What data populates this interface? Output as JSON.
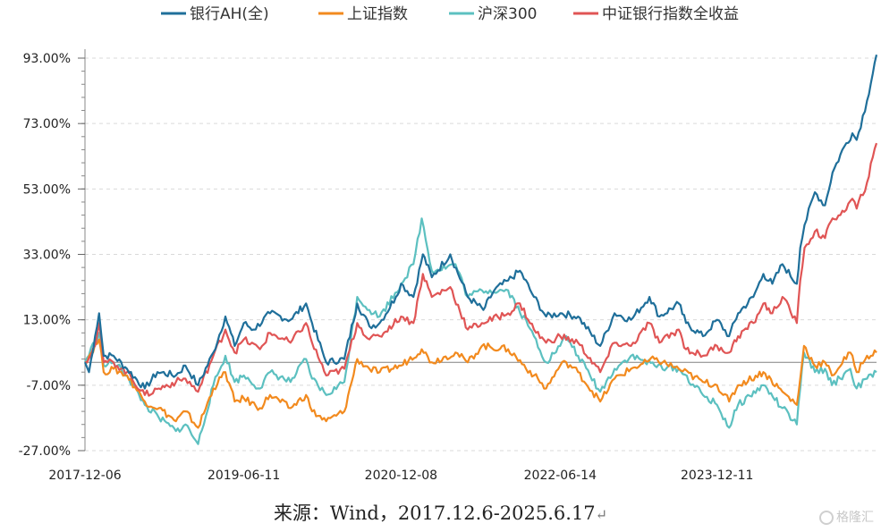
{
  "chart_data": {
    "type": "line",
    "legend": [
      "银行AH(全)",
      "上证指数",
      "沪深300",
      "中证银行指数全收益"
    ],
    "legend_position": "top",
    "y_ticks": [
      "93.00%",
      "73.00%",
      "53.00%",
      "33.00%",
      "13.00%",
      "-7.00%",
      "-27.00%"
    ],
    "ylim": [
      -27,
      93
    ],
    "x_ticks": [
      "2017-12-06",
      "2019-06-11",
      "2020-12-08",
      "2022-06-14",
      "2023-12-11"
    ],
    "x_range": [
      "2017-12-06",
      "2025-06-17"
    ],
    "grid": "horizontal dashed",
    "series": [
      {
        "name": "银行AH(全)",
        "color": "#1f6f9a",
        "points": [
          [
            "2017-12-06",
            0
          ],
          [
            "2017-12-20",
            -3
          ],
          [
            "2018-01-10",
            8
          ],
          [
            "2018-01-24",
            15
          ],
          [
            "2018-02-09",
            2
          ],
          [
            "2018-03-15",
            2
          ],
          [
            "2018-05-01",
            -2
          ],
          [
            "2018-07-02",
            -8
          ],
          [
            "2018-08-15",
            -3
          ],
          [
            "2018-10-18",
            -4
          ],
          [
            "2018-11-20",
            -1
          ],
          [
            "2019-01-03",
            -7
          ],
          [
            "2019-02-25",
            3
          ],
          [
            "2019-04-08",
            14
          ],
          [
            "2019-05-10",
            5
          ],
          [
            "2019-06-11",
            12
          ],
          [
            "2019-07-15",
            10
          ],
          [
            "2019-09-10",
            15
          ],
          [
            "2019-11-20",
            13
          ],
          [
            "2020-01-13",
            18
          ],
          [
            "2020-02-03",
            12
          ],
          [
            "2020-03-23",
            0
          ],
          [
            "2020-05-25",
            1
          ],
          [
            "2020-07-09",
            18
          ],
          [
            "2020-08-20",
            11
          ],
          [
            "2020-09-25",
            12
          ],
          [
            "2020-11-20",
            20
          ],
          [
            "2020-12-08",
            24
          ],
          [
            "2021-01-20",
            20
          ],
          [
            "2021-02-22",
            33
          ],
          [
            "2021-03-25",
            26
          ],
          [
            "2021-05-28",
            33
          ],
          [
            "2021-07-28",
            20
          ],
          [
            "2021-09-20",
            16
          ],
          [
            "2021-10-28",
            22
          ],
          [
            "2021-12-15",
            25
          ],
          [
            "2022-01-25",
            28
          ],
          [
            "2022-03-15",
            20
          ],
          [
            "2022-04-26",
            14
          ],
          [
            "2022-06-14",
            15
          ],
          [
            "2022-08-15",
            14
          ],
          [
            "2022-10-31",
            5
          ],
          [
            "2022-12-20",
            15
          ],
          [
            "2023-02-15",
            13
          ],
          [
            "2023-04-20",
            20
          ],
          [
            "2023-05-25",
            14
          ],
          [
            "2023-07-31",
            18
          ],
          [
            "2023-08-25",
            12
          ],
          [
            "2023-10-23",
            8
          ],
          [
            "2023-12-11",
            13
          ],
          [
            "2024-01-22",
            8
          ],
          [
            "2024-02-22",
            15
          ],
          [
            "2024-04-15",
            20
          ],
          [
            "2024-05-20",
            27
          ],
          [
            "2024-06-20",
            24
          ],
          [
            "2024-07-25",
            30
          ],
          [
            "2024-09-13",
            24
          ],
          [
            "2024-09-25",
            35
          ],
          [
            "2024-10-10",
            42
          ],
          [
            "2024-11-15",
            52
          ],
          [
            "2024-12-20",
            48
          ],
          [
            "2025-01-15",
            58
          ],
          [
            "2025-02-25",
            66
          ],
          [
            "2025-03-25",
            70
          ],
          [
            "2025-04-09",
            68
          ],
          [
            "2025-05-15",
            80
          ],
          [
            "2025-06-17",
            94
          ]
        ]
      },
      {
        "name": "上证指数",
        "color": "#f28a1e",
        "points": [
          [
            "2017-12-06",
            0
          ],
          [
            "2018-01-24",
            7
          ],
          [
            "2018-02-09",
            -3
          ],
          [
            "2018-03-15",
            -2
          ],
          [
            "2018-05-01",
            -4
          ],
          [
            "2018-07-02",
            -12
          ],
          [
            "2018-08-20",
            -14
          ],
          [
            "2018-10-18",
            -18
          ],
          [
            "2018-11-20",
            -15
          ],
          [
            "2019-01-03",
            -20
          ],
          [
            "2019-02-25",
            -8
          ],
          [
            "2019-04-08",
            -3
          ],
          [
            "2019-05-10",
            -12
          ],
          [
            "2019-06-11",
            -11
          ],
          [
            "2019-08-06",
            -14
          ],
          [
            "2019-09-10",
            -10
          ],
          [
            "2019-11-20",
            -14
          ],
          [
            "2020-01-13",
            -10
          ],
          [
            "2020-02-03",
            -15
          ],
          [
            "2020-03-23",
            -18
          ],
          [
            "2020-05-25",
            -15
          ],
          [
            "2020-07-09",
            1
          ],
          [
            "2020-08-20",
            -2
          ],
          [
            "2020-09-25",
            -3
          ],
          [
            "2020-12-08",
            -1
          ],
          [
            "2021-02-18",
            4
          ],
          [
            "2021-03-25",
            0
          ],
          [
            "2021-06-15",
            3
          ],
          [
            "2021-07-28",
            0
          ],
          [
            "2021-09-15",
            5
          ],
          [
            "2021-12-15",
            4
          ],
          [
            "2022-03-15",
            -4
          ],
          [
            "2022-04-26",
            -8
          ],
          [
            "2022-06-14",
            -1
          ],
          [
            "2022-07-05",
            0
          ],
          [
            "2022-08-15",
            -3
          ],
          [
            "2022-10-31",
            -12
          ],
          [
            "2022-12-20",
            -5
          ],
          [
            "2023-02-15",
            -2
          ],
          [
            "2023-05-08",
            1
          ],
          [
            "2023-07-31",
            -2
          ],
          [
            "2023-10-23",
            -6
          ],
          [
            "2023-12-11",
            -7
          ],
          [
            "2024-01-22",
            -12
          ],
          [
            "2024-02-22",
            -7
          ],
          [
            "2024-05-20",
            -3
          ],
          [
            "2024-07-25",
            -9
          ],
          [
            "2024-09-13",
            -13
          ],
          [
            "2024-09-25",
            -5
          ],
          [
            "2024-10-08",
            5
          ],
          [
            "2024-11-15",
            -1
          ],
          [
            "2024-12-20",
            0
          ],
          [
            "2025-01-13",
            -4
          ],
          [
            "2025-03-18",
            3
          ],
          [
            "2025-04-09",
            -3
          ],
          [
            "2025-05-15",
            2
          ],
          [
            "2025-06-17",
            3
          ]
        ]
      },
      {
        "name": "沪深300",
        "color": "#5cc0c0",
        "points": [
          [
            "2017-12-06",
            0
          ],
          [
            "2018-01-24",
            9
          ],
          [
            "2018-02-09",
            -1
          ],
          [
            "2018-03-15",
            0
          ],
          [
            "2018-05-01",
            -4
          ],
          [
            "2018-07-02",
            -13
          ],
          [
            "2018-08-20",
            -17
          ],
          [
            "2018-10-18",
            -21
          ],
          [
            "2018-11-20",
            -19
          ],
          [
            "2019-01-03",
            -25
          ],
          [
            "2019-02-25",
            -7
          ],
          [
            "2019-04-08",
            2
          ],
          [
            "2019-05-10",
            -6
          ],
          [
            "2019-06-11",
            -4
          ],
          [
            "2019-08-06",
            -8
          ],
          [
            "2019-09-10",
            -3
          ],
          [
            "2019-11-20",
            -6
          ],
          [
            "2020-01-13",
            1
          ],
          [
            "2020-02-03",
            -5
          ],
          [
            "2020-03-23",
            -10
          ],
          [
            "2020-05-25",
            -6
          ],
          [
            "2020-07-09",
            20
          ],
          [
            "2020-08-20",
            16
          ],
          [
            "2020-09-25",
            14
          ],
          [
            "2020-12-08",
            24
          ],
          [
            "2021-01-20",
            30
          ],
          [
            "2021-02-18",
            44
          ],
          [
            "2021-03-25",
            28
          ],
          [
            "2021-06-15",
            30
          ],
          [
            "2021-07-28",
            20
          ],
          [
            "2021-09-15",
            22
          ],
          [
            "2021-12-15",
            22
          ],
          [
            "2022-03-15",
            8
          ],
          [
            "2022-04-26",
            0
          ],
          [
            "2022-06-14",
            5
          ],
          [
            "2022-07-05",
            8
          ],
          [
            "2022-08-15",
            2
          ],
          [
            "2022-10-31",
            -9
          ],
          [
            "2022-12-20",
            -2
          ],
          [
            "2023-02-15",
            2
          ],
          [
            "2023-05-08",
            -1
          ],
          [
            "2023-07-31",
            -2
          ],
          [
            "2023-10-23",
            -10
          ],
          [
            "2023-12-11",
            -13
          ],
          [
            "2024-01-22",
            -20
          ],
          [
            "2024-02-22",
            -13
          ],
          [
            "2024-05-20",
            -7
          ],
          [
            "2024-07-25",
            -14
          ],
          [
            "2024-09-13",
            -19
          ],
          [
            "2024-09-25",
            -8
          ],
          [
            "2024-10-08",
            3
          ],
          [
            "2024-11-15",
            -3
          ],
          [
            "2024-12-20",
            -2
          ],
          [
            "2025-01-13",
            -7
          ],
          [
            "2025-03-18",
            -2
          ],
          [
            "2025-04-09",
            -8
          ],
          [
            "2025-05-15",
            -5
          ],
          [
            "2025-06-17",
            -3
          ]
        ]
      },
      {
        "name": "中证银行指数全收益",
        "color": "#e05555",
        "points": [
          [
            "2017-12-06",
            0
          ],
          [
            "2018-01-10",
            5
          ],
          [
            "2018-01-24",
            12
          ],
          [
            "2018-02-09",
            0
          ],
          [
            "2018-03-15",
            0
          ],
          [
            "2018-05-01",
            -3
          ],
          [
            "2018-07-02",
            -10
          ],
          [
            "2018-08-20",
            -8
          ],
          [
            "2018-10-18",
            -6
          ],
          [
            "2018-11-20",
            -5
          ],
          [
            "2019-01-03",
            -9
          ],
          [
            "2019-02-25",
            2
          ],
          [
            "2019-04-08",
            10
          ],
          [
            "2019-05-10",
            3
          ],
          [
            "2019-06-11",
            7
          ],
          [
            "2019-08-06",
            4
          ],
          [
            "2019-09-10",
            9
          ],
          [
            "2019-11-20",
            6
          ],
          [
            "2020-01-13",
            12
          ],
          [
            "2020-02-03",
            6
          ],
          [
            "2020-03-23",
            -4
          ],
          [
            "2020-05-25",
            -2
          ],
          [
            "2020-07-09",
            12
          ],
          [
            "2020-08-20",
            7
          ],
          [
            "2020-09-25",
            8
          ],
          [
            "2020-12-08",
            14
          ],
          [
            "2021-01-20",
            12
          ],
          [
            "2021-02-22",
            27
          ],
          [
            "2021-03-25",
            20
          ],
          [
            "2021-05-28",
            23
          ],
          [
            "2021-07-28",
            10
          ],
          [
            "2021-09-15",
            12
          ],
          [
            "2021-12-15",
            15
          ],
          [
            "2022-01-25",
            18
          ],
          [
            "2022-03-15",
            10
          ],
          [
            "2022-04-26",
            6
          ],
          [
            "2022-06-14",
            8
          ],
          [
            "2022-08-15",
            6
          ],
          [
            "2022-10-31",
            -3
          ],
          [
            "2022-12-20",
            6
          ],
          [
            "2023-02-15",
            5
          ],
          [
            "2023-04-20",
            12
          ],
          [
            "2023-05-25",
            6
          ],
          [
            "2023-07-31",
            10
          ],
          [
            "2023-08-25",
            4
          ],
          [
            "2023-10-23",
            2
          ],
          [
            "2023-12-11",
            5
          ],
          [
            "2024-01-22",
            3
          ],
          [
            "2024-02-22",
            8
          ],
          [
            "2024-04-15",
            12
          ],
          [
            "2024-05-20",
            18
          ],
          [
            "2024-06-20",
            15
          ],
          [
            "2024-07-25",
            20
          ],
          [
            "2024-09-13",
            12
          ],
          [
            "2024-09-25",
            25
          ],
          [
            "2024-10-10",
            35
          ],
          [
            "2024-11-15",
            40
          ],
          [
            "2024-12-20",
            38
          ],
          [
            "2025-01-15",
            44
          ],
          [
            "2025-02-25",
            46
          ],
          [
            "2025-03-25",
            50
          ],
          [
            "2025-04-09",
            47
          ],
          [
            "2025-05-15",
            55
          ],
          [
            "2025-06-17",
            67
          ]
        ]
      }
    ]
  },
  "source_text": "来源：Wind，2017.12.6-2025.6.17",
  "source_mark": "↵",
  "watermark_text": "格隆汇"
}
